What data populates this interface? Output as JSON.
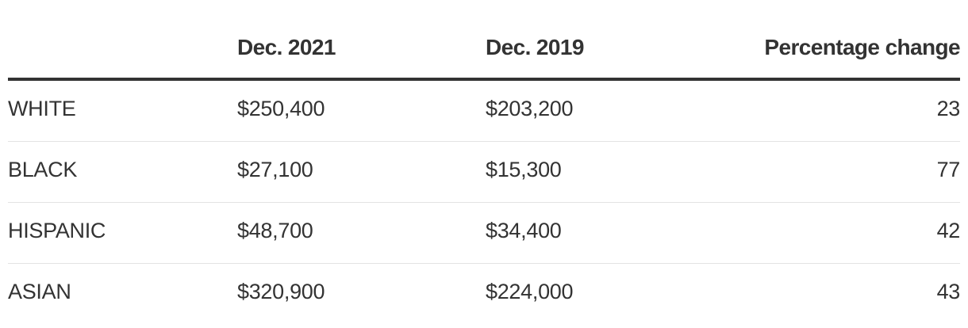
{
  "table": {
    "headers": {
      "group": "",
      "dec_2021": "Dec. 2021",
      "dec_2019": "Dec. 2019",
      "pct_change": "Percentage change"
    },
    "rows": [
      {
        "group": "WHITE",
        "dec_2021": "$250,400",
        "dec_2019": "$203,200",
        "pct_change": "23"
      },
      {
        "group": "BLACK",
        "dec_2021": "$27,100",
        "dec_2019": "$15,300",
        "pct_change": "77"
      },
      {
        "group": "HISPANIC",
        "dec_2021": "$48,700",
        "dec_2019": "$34,400",
        "pct_change": "42"
      },
      {
        "group": "ASIAN",
        "dec_2021": "$320,900",
        "dec_2019": "$224,000",
        "pct_change": "43"
      }
    ]
  }
}
